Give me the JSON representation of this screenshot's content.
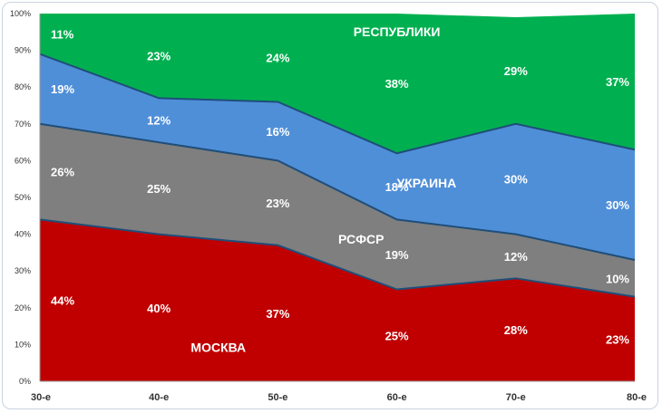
{
  "chart_data": {
    "type": "area",
    "stacked": "percent",
    "categories": [
      "30-е",
      "40-е",
      "50-е",
      "60-е",
      "70-е",
      "80-е"
    ],
    "series": [
      {
        "name": "МОСКВА",
        "color": "#c00000",
        "values": [
          44,
          40,
          37,
          25,
          28,
          23
        ]
      },
      {
        "name": "РСФСР",
        "color": "#7f7f7f",
        "values": [
          26,
          25,
          23,
          19,
          12,
          10
        ]
      },
      {
        "name": "УКРАИНА",
        "color": "#4f8fd8",
        "values": [
          19,
          12,
          16,
          18,
          30,
          30
        ]
      },
      {
        "name": "РЕСПУБЛИКИ",
        "color": "#00b050",
        "values": [
          11,
          23,
          24,
          38,
          29,
          37
        ]
      }
    ],
    "data_labels": [
      [
        "44%",
        "40%",
        "37%",
        "25%",
        "28%",
        "23%"
      ],
      [
        "26%",
        "25%",
        "23%",
        "19%",
        "12%",
        "10%"
      ],
      [
        "19%",
        "12%",
        "16%",
        "18%",
        "30%",
        "30%"
      ],
      [
        "11%",
        "23%",
        "24%",
        "38%",
        "29%",
        "37%"
      ]
    ],
    "y_ticks": [
      "0%",
      "10%",
      "20%",
      "30%",
      "40%",
      "50%",
      "60%",
      "70%",
      "80%",
      "90%",
      "100%"
    ],
    "ylim": [
      0,
      100
    ],
    "boundary_color": "#1f4e79",
    "grid": false,
    "legend": "none"
  }
}
